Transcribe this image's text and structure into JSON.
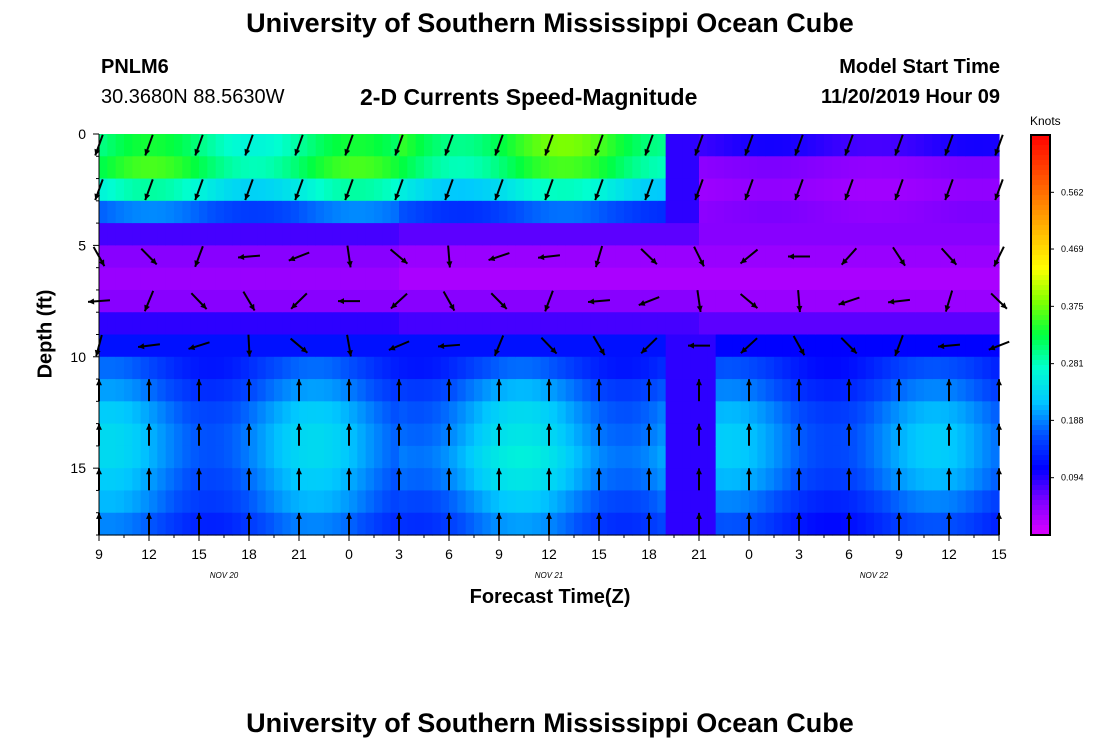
{
  "title": "University of Southern Mississippi Ocean Cube",
  "footer_title": "University of Southern Mississippi Ocean Cube",
  "station": {
    "id": "PNLM6",
    "coords": "30.3680N 88.5630W"
  },
  "subtitle": "2-D Currents Speed-Magnitude",
  "model_start": {
    "label": "Model Start Time",
    "value": "11/20/2019 Hour 09"
  },
  "colorbar": {
    "units": "Knots",
    "tick_labels": [
      "0.562",
      "0.469",
      "0.375",
      "0.281",
      "0.188",
      "0.094"
    ],
    "tick_values": [
      0.562,
      0.469,
      0.375,
      0.281,
      0.188,
      0.094
    ],
    "range": [
      0.0,
      0.656
    ],
    "colors": [
      "#dd00ff",
      "#8000ff",
      "#0000ff",
      "#0050ff",
      "#00c8ff",
      "#00ffd0",
      "#00ff40",
      "#80ff00",
      "#ffff00",
      "#ffc000",
      "#ff8000",
      "#ff4000",
      "#ff0000"
    ]
  },
  "chart_data": {
    "type": "heatmap",
    "title": "2-D Currents Speed-Magnitude",
    "xlabel": "Forecast Time(Z)",
    "ylabel": "Depth (ft)",
    "x_tick_labels": [
      "9",
      "12",
      "15",
      "18",
      "21",
      "0",
      "3",
      "6",
      "9",
      "12",
      "15",
      "18",
      "21",
      "0",
      "3",
      "6",
      "9",
      "12",
      "15"
    ],
    "x_range_hours": [
      0,
      54
    ],
    "date_labels": [
      {
        "text": "NOV  20",
        "hour": 7.5
      },
      {
        "text": "NOV  21",
        "hour": 27
      },
      {
        "text": "NOV  22",
        "hour": 46.5
      }
    ],
    "y_tick_labels": [
      "0",
      "5",
      "10",
      "15"
    ],
    "y_ticks": [
      0,
      5,
      10,
      15
    ],
    "y_range": [
      0,
      18
    ],
    "units": "Knots",
    "depth_levels": [
      0.5,
      1.5,
      2.5,
      3.5,
      4.5,
      5.5,
      6.5,
      7.5,
      8.5,
      9.5,
      10.5,
      11.5,
      12.5,
      13.5,
      14.5,
      15.5,
      16.5,
      17.5
    ],
    "speed_profile_knots": [
      {
        "hours": [
          0,
          18
        ],
        "by_depth": [
          0.3,
          0.32,
          0.26,
          0.17,
          0.08,
          0.05,
          0.04,
          0.05,
          0.09,
          0.12,
          0.15,
          0.17,
          0.19,
          0.2,
          0.2,
          0.19,
          0.18,
          0.16
        ]
      },
      {
        "hours": [
          18,
          36
        ],
        "by_depth": [
          0.34,
          0.32,
          0.25,
          0.16,
          0.07,
          0.04,
          0.03,
          0.05,
          0.08,
          0.12,
          0.15,
          0.18,
          0.2,
          0.21,
          0.22,
          0.21,
          0.19,
          0.17
        ]
      },
      {
        "hours": [
          36,
          54
        ],
        "by_depth": [
          0.09,
          0.05,
          0.04,
          0.05,
          0.05,
          0.04,
          0.03,
          0.04,
          0.07,
          0.11,
          0.14,
          0.16,
          0.18,
          0.19,
          0.19,
          0.18,
          0.16,
          0.14
        ]
      }
    ],
    "vector_direction_deg": {
      "surface_0_to_3ft": 200,
      "mid_4_to_9ft": "variable",
      "bottom_10_to_18ft": 0
    },
    "grid": false
  }
}
